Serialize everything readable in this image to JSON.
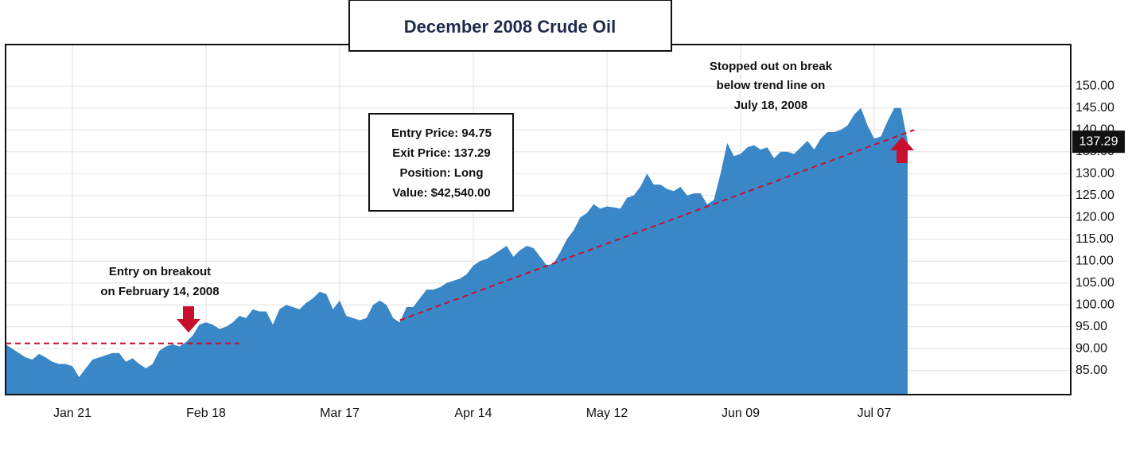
{
  "chart_data": {
    "type": "area",
    "title": "December 2008 Crude Oil",
    "categories": [
      null,
      null,
      null,
      null,
      null,
      null,
      null,
      null,
      null,
      null,
      "Jan 21",
      null,
      null,
      null,
      null,
      null,
      null,
      null,
      null,
      null,
      null,
      null,
      null,
      null,
      null,
      null,
      null,
      null,
      null,
      null,
      "Feb 18",
      null,
      null,
      null,
      null,
      null,
      null,
      null,
      null,
      null,
      null,
      null,
      null,
      null,
      null,
      null,
      null,
      null,
      null,
      null,
      "Mar 17",
      null,
      null,
      null,
      null,
      null,
      null,
      null,
      null,
      null,
      null,
      null,
      null,
      null,
      null,
      null,
      null,
      null,
      null,
      null,
      "Apr 14",
      null,
      null,
      null,
      null,
      null,
      null,
      null,
      null,
      null,
      null,
      null,
      null,
      null,
      null,
      null,
      null,
      null,
      null,
      null,
      "May 12",
      null,
      null,
      null,
      null,
      null,
      null,
      null,
      null,
      null,
      null,
      null,
      null,
      null,
      null,
      null,
      null,
      null,
      null,
      null,
      "Jun 09",
      null,
      null,
      null,
      null,
      null,
      null,
      null,
      null,
      null,
      null,
      null,
      null,
      null,
      null,
      null,
      null,
      null,
      null,
      null,
      "Jul 07",
      null,
      null,
      null,
      null,
      null
    ],
    "values": [
      91,
      90,
      89,
      88,
      87.5,
      88.8,
      88,
      87,
      86.5,
      86.5,
      86,
      83.5,
      85.5,
      87.5,
      88,
      88.5,
      89,
      89,
      87,
      87.8,
      86.5,
      85.5,
      86.5,
      89.5,
      90.5,
      91,
      90.5,
      91.5,
      93,
      95.5,
      96,
      95.5,
      94.5,
      95,
      96,
      97.5,
      97,
      99,
      98.5,
      98.5,
      95.5,
      99,
      100,
      99.5,
      99,
      100.5,
      101.5,
      103,
      102.5,
      99,
      101,
      97.5,
      97,
      96.5,
      97,
      100,
      101,
      100,
      97,
      96,
      99.5,
      99.5,
      101.5,
      103.5,
      103.5,
      104,
      105,
      105.5,
      106,
      107,
      109,
      110,
      110.5,
      111.5,
      112.5,
      113.5,
      111,
      112.5,
      113.5,
      113,
      111,
      109,
      109.5,
      112,
      115,
      117,
      120,
      121,
      123,
      122,
      122.5,
      122.3,
      122,
      124.5,
      125,
      127,
      130,
      127.5,
      127.5,
      126.5,
      126,
      127,
      125,
      125.5,
      125.5,
      123,
      124,
      130,
      137,
      134,
      134.5,
      136,
      136.5,
      135.5,
      136,
      133.5,
      135,
      135,
      134.5,
      136,
      137.5,
      135.5,
      138,
      139.5,
      139.5,
      140,
      141,
      143.5,
      145,
      141,
      138,
      138.5,
      142,
      145,
      145,
      137.29
    ],
    "color": "#3a87c8",
    "ylim": [
      79.5,
      159.5
    ],
    "yticks": [
      {
        "value": 85,
        "label": "85.00"
      },
      {
        "value": 90,
        "label": "90.00"
      },
      {
        "value": 95,
        "label": "95.00"
      },
      {
        "value": 100,
        "label": "100.00"
      },
      {
        "value": 105,
        "label": "105.00"
      },
      {
        "value": 110,
        "label": "110.00"
      },
      {
        "value": 115,
        "label": "115.00"
      },
      {
        "value": 120,
        "label": "120.00"
      },
      {
        "value": 125,
        "label": "125.00"
      },
      {
        "value": 130,
        "label": "130.00"
      },
      {
        "value": 135,
        "label": "135.00"
      },
      {
        "value": 140,
        "label": "140.00"
      },
      {
        "value": 145,
        "label": "145.00"
      },
      {
        "value": 150,
        "label": "150.00"
      }
    ],
    "grid": true,
    "lines": [
      {
        "from": [
          0,
          91.2
        ],
        "to": [
          35,
          91.2
        ]
      },
      {
        "from": [
          59,
          96.5
        ],
        "to": [
          136,
          140
        ]
      }
    ],
    "annotations": [
      [
        "Entry on breakout",
        "on February 14, 2008"
      ],
      [
        "Stopped out on break",
        "below trend line on",
        "July 18, 2008"
      ],
      [
        "Entry Price: 94.75",
        "Exit Price: 137.29",
        "Position: Long",
        "Value: $42,540.00"
      ]
    ]
  }
}
